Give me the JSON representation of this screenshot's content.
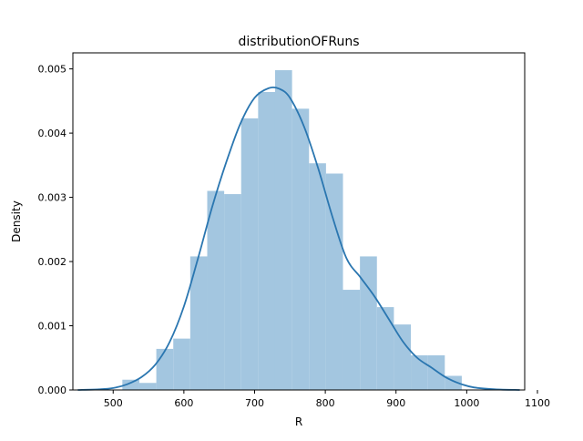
{
  "chart_data": {
    "type": "bar",
    "title": "distributionOFRuns",
    "xlabel": "R",
    "ylabel": "Density",
    "xlim": [
      443,
      1082
    ],
    "ylim": [
      0,
      0.00525
    ],
    "xticks": [
      "500",
      "600",
      "700",
      "800",
      "900",
      "1000",
      "1100"
    ],
    "yticks": [
      "0.000",
      "0.001",
      "0.002",
      "0.003",
      "0.004",
      "0.005"
    ],
    "grid": false,
    "legend": "none",
    "bar_color": "#a3c6e0",
    "line_color": "#2a76b0",
    "histogram": {
      "bin_edges": [
        513,
        537,
        561,
        585,
        609,
        633,
        657,
        681,
        705,
        729,
        753,
        777,
        801,
        825,
        849,
        873,
        897,
        921,
        945,
        969,
        993
      ],
      "density": [
        0.00016,
        0.00011,
        0.00064,
        0.0008,
        0.00208,
        0.0031,
        0.00305,
        0.00423,
        0.00464,
        0.00498,
        0.00438,
        0.00353,
        0.00337,
        0.00156,
        0.00208,
        0.00129,
        0.00102,
        0.00054,
        0.00054,
        0.00022
      ]
    },
    "kde": {
      "x": [
        450,
        480,
        500,
        520,
        540,
        560,
        580,
        600,
        620,
        640,
        660,
        680,
        700,
        720,
        735,
        750,
        770,
        790,
        810,
        830,
        850,
        870,
        890,
        910,
        930,
        950,
        970,
        990,
        1010,
        1040,
        1075
      ],
      "y": [
        0.0,
        1e-05,
        3e-05,
        9e-05,
        0.0002,
        0.0004,
        0.00075,
        0.0013,
        0.00205,
        0.00285,
        0.00355,
        0.00415,
        0.00455,
        0.0047,
        0.00469,
        0.00455,
        0.0041,
        0.00345,
        0.0027,
        0.00205,
        0.00175,
        0.00145,
        0.0011,
        0.00075,
        0.0005,
        0.00035,
        0.0002,
        0.0001,
        4e-05,
        1e-05,
        0.0
      ]
    }
  }
}
